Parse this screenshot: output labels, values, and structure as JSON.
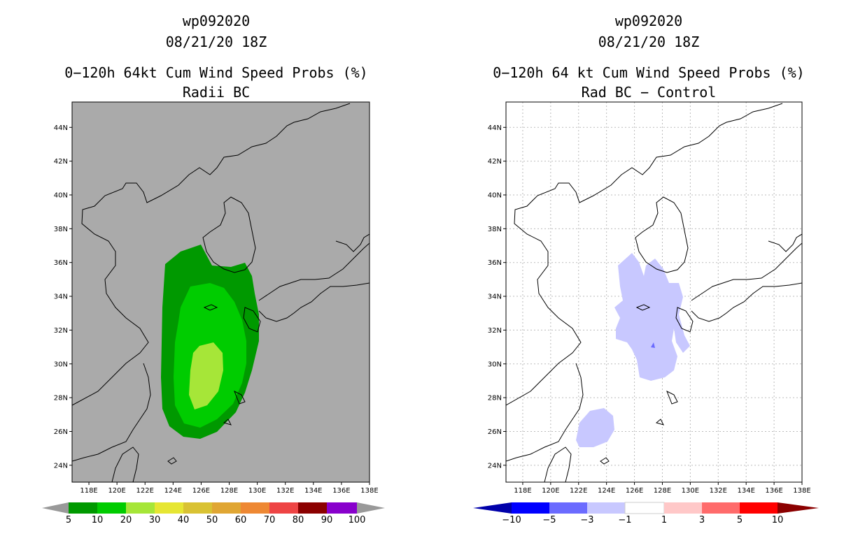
{
  "colors": {
    "land_left": "#aaaaaa",
    "p5": "#009900",
    "p10": "#00cc00",
    "p20": "#a6e638",
    "p30": "#e6e633",
    "p40": "#d9c233",
    "p50": "#e0a633",
    "p60": "#ee8833",
    "p70": "#ee4444",
    "p80": "#8b0000",
    "p90": "#8800cc",
    "p100": "#999999",
    "d_m10": "#0000aa",
    "d_m5": "#0000ff",
    "d_m3": "#6b6bff",
    "d_m1": "#c8c8ff",
    "d_0": "#ffffff",
    "d_1": "#ffc8c8",
    "d_3": "#ff6b6b",
    "d_5": "#ff0000",
    "d_10": "#8b0000"
  },
  "left_panel": {
    "storm_id": "wp092020",
    "datetime": "08/21/20 18Z",
    "title": "0−120h 64kt Cum Wind Speed Probs (%)",
    "subtitle": "Radii BC",
    "colorbar_labels": [
      "5",
      "10",
      "20",
      "30",
      "40",
      "50",
      "60",
      "70",
      "80",
      "90",
      "100"
    ]
  },
  "right_panel": {
    "storm_id": "wp092020",
    "datetime": "08/21/20 18Z",
    "title": "0−120h 64 kt Cum Wind Speed Probs (%)",
    "subtitle": "Rad BC − Control",
    "colorbar_labels": [
      "−10",
      "−5",
      "−3",
      "−1",
      "1",
      "3",
      "5",
      "10"
    ]
  },
  "axes": {
    "lat_labels": [
      "44N",
      "42N",
      "40N",
      "38N",
      "36N",
      "34N",
      "32N",
      "30N",
      "28N",
      "26N",
      "24N"
    ],
    "lat_values": [
      44,
      42,
      40,
      38,
      36,
      34,
      32,
      30,
      28,
      26,
      24
    ],
    "lon_labels": [
      "118E",
      "120E",
      "122E",
      "124E",
      "126E",
      "128E",
      "130E",
      "132E",
      "134E",
      "136E",
      "138E"
    ],
    "lon_values": [
      118,
      120,
      122,
      124,
      126,
      128,
      130,
      132,
      134,
      136,
      138
    ]
  }
}
